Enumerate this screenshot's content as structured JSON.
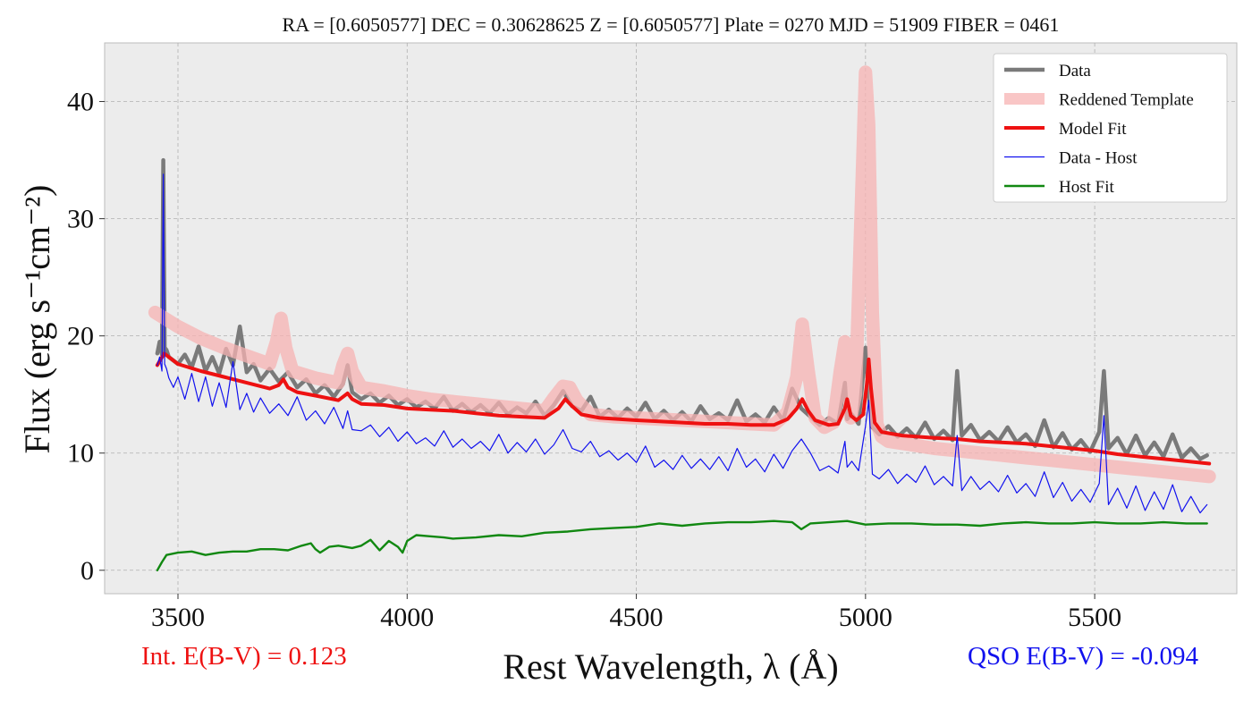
{
  "chart_data": {
    "type": "line",
    "title": "RA = [0.6050577]  DEC = 0.30628625  Z = [0.6050577] Plate = 0270 MJD = 51909 FIBER = 0461",
    "xlabel": "Rest Wavelength, λ (Å)",
    "ylabel": "Flux (erg s⁻¹cm⁻²)",
    "xlim": [
      3340,
      5810
    ],
    "ylim": [
      -2,
      45
    ],
    "xticks": [
      "3500",
      "4000",
      "4500",
      "5000",
      "5500"
    ],
    "yticks": [
      "0",
      "10",
      "20",
      "30",
      "40"
    ],
    "grid": true,
    "legend_position": "top-right",
    "background": "#ececec",
    "series": [
      {
        "name": "Data",
        "color": "#7a7a7a",
        "x": [
          3455,
          3460,
          3465,
          3468,
          3471,
          3475,
          3480,
          3490,
          3500,
          3515,
          3530,
          3545,
          3560,
          3575,
          3590,
          3605,
          3620,
          3635,
          3650,
          3665,
          3680,
          3700,
          3720,
          3740,
          3760,
          3780,
          3800,
          3820,
          3840,
          3860,
          3870,
          3880,
          3900,
          3920,
          3940,
          3960,
          3980,
          4000,
          4020,
          4040,
          4060,
          4080,
          4100,
          4120,
          4140,
          4160,
          4180,
          4200,
          4220,
          4240,
          4260,
          4280,
          4300,
          4320,
          4340,
          4360,
          4380,
          4400,
          4420,
          4440,
          4460,
          4480,
          4500,
          4520,
          4540,
          4560,
          4580,
          4600,
          4620,
          4640,
          4660,
          4680,
          4700,
          4720,
          4740,
          4760,
          4780,
          4800,
          4820,
          4840,
          4860,
          4880,
          4900,
          4920,
          4940,
          4955,
          4960,
          4970,
          4985,
          5000,
          5007,
          5015,
          5030,
          5050,
          5070,
          5090,
          5110,
          5130,
          5150,
          5170,
          5190,
          5200,
          5210,
          5230,
          5250,
          5270,
          5290,
          5310,
          5330,
          5350,
          5370,
          5390,
          5410,
          5430,
          5450,
          5470,
          5490,
          5510,
          5520,
          5530,
          5550,
          5570,
          5590,
          5610,
          5630,
          5650,
          5670,
          5690,
          5710,
          5730,
          5745
        ],
        "y": [
          18.5,
          19.5,
          18.4,
          35.0,
          19.0,
          18.8,
          18.2,
          17.9,
          17.6,
          18.4,
          17.3,
          19.1,
          17.0,
          18.2,
          16.8,
          18.9,
          17.5,
          20.8,
          16.9,
          17.6,
          16.2,
          17.2,
          16.1,
          16.9,
          15.6,
          16.3,
          15.1,
          15.8,
          14.8,
          15.9,
          17.5,
          15.2,
          14.6,
          15.1,
          14.3,
          14.9,
          14.1,
          14.6,
          13.9,
          14.4,
          13.8,
          14.8,
          13.6,
          14.2,
          13.5,
          14.1,
          13.4,
          14.3,
          13.3,
          13.9,
          13.4,
          14.4,
          13.2,
          14.1,
          15.3,
          14.0,
          13.6,
          14.8,
          13.1,
          13.7,
          13.0,
          13.8,
          13.1,
          14.3,
          12.9,
          13.6,
          12.8,
          13.5,
          12.7,
          14.0,
          12.9,
          13.4,
          12.8,
          14.5,
          12.7,
          13.3,
          12.6,
          13.9,
          12.8,
          15.5,
          13.8,
          13.1,
          12.4,
          13.0,
          12.5,
          16.0,
          12.9,
          13.3,
          12.5,
          19.0,
          15.0,
          12.2,
          11.6,
          12.3,
          11.4,
          12.1,
          11.3,
          12.6,
          11.2,
          11.9,
          11.1,
          17.0,
          11.5,
          12.4,
          11.1,
          11.8,
          11.0,
          12.2,
          10.9,
          11.6,
          10.6,
          12.8,
          10.5,
          11.7,
          10.3,
          11.1,
          10.1,
          11.8,
          17.0,
          10.4,
          11.3,
          9.9,
          11.5,
          9.8,
          10.9,
          9.7,
          11.6,
          9.6,
          10.4,
          9.5,
          9.8
        ]
      },
      {
        "name": "Reddened Template",
        "color": "#f7b3b3",
        "x": [
          3450,
          3500,
          3550,
          3600,
          3650,
          3700,
          3715,
          3725,
          3735,
          3750,
          3800,
          3850,
          3860,
          3870,
          3880,
          3900,
          3950,
          4000,
          4050,
          4100,
          4150,
          4200,
          4250,
          4300,
          4320,
          4340,
          4355,
          4370,
          4400,
          4450,
          4500,
          4550,
          4600,
          4650,
          4700,
          4750,
          4800,
          4830,
          4850,
          4862,
          4875,
          4890,
          4910,
          4930,
          4945,
          4955,
          4960,
          4968,
          4978,
          4990,
          5000,
          5007,
          5015,
          5025,
          5035,
          5050,
          5100,
          5150,
          5200,
          5250,
          5300,
          5350,
          5400,
          5450,
          5500,
          5550,
          5600,
          5650,
          5700,
          5750
        ],
        "y": [
          22.0,
          20.8,
          19.8,
          19.0,
          18.3,
          17.6,
          19.5,
          21.5,
          19.0,
          17.0,
          16.4,
          16.0,
          17.5,
          18.5,
          17.0,
          15.6,
          15.3,
          14.9,
          14.6,
          14.4,
          14.2,
          14.0,
          13.8,
          13.6,
          14.7,
          15.7,
          15.6,
          14.5,
          13.3,
          13.1,
          13.0,
          12.9,
          12.8,
          12.7,
          12.6,
          12.5,
          12.4,
          13.5,
          16.5,
          21.0,
          17.0,
          13.0,
          12.2,
          12.6,
          17.0,
          19.5,
          17.5,
          13.0,
          15.0,
          30.0,
          42.5,
          38.0,
          22.0,
          12.5,
          11.4,
          11.0,
          10.7,
          10.4,
          10.2,
          10.0,
          9.8,
          9.6,
          9.4,
          9.2,
          9.0,
          8.8,
          8.6,
          8.4,
          8.2,
          8.0
        ]
      },
      {
        "name": "Model Fit",
        "color": "#ee1111",
        "x": [
          3455,
          3470,
          3500,
          3550,
          3600,
          3650,
          3700,
          3720,
          3730,
          3740,
          3760,
          3800,
          3850,
          3870,
          3880,
          3900,
          3950,
          4000,
          4050,
          4100,
          4150,
          4200,
          4250,
          4300,
          4330,
          4345,
          4360,
          4380,
          4420,
          4500,
          4550,
          4600,
          4650,
          4700,
          4750,
          4800,
          4830,
          4850,
          4862,
          4875,
          4890,
          4920,
          4940,
          4955,
          4960,
          4968,
          4980,
          4995,
          5003,
          5007,
          5012,
          5020,
          5035,
          5080,
          5150,
          5200,
          5250,
          5300,
          5350,
          5400,
          5450,
          5500,
          5550,
          5600,
          5650,
          5700,
          5750
        ],
        "y": [
          17.5,
          18.5,
          17.6,
          17.0,
          16.5,
          16.0,
          15.5,
          15.8,
          16.3,
          15.6,
          15.2,
          14.9,
          14.5,
          15.1,
          14.6,
          14.2,
          14.1,
          13.8,
          13.7,
          13.6,
          13.4,
          13.2,
          13.1,
          13.0,
          13.8,
          14.6,
          14.0,
          13.3,
          13.0,
          12.8,
          12.7,
          12.6,
          12.5,
          12.5,
          12.4,
          12.4,
          12.9,
          13.8,
          14.6,
          13.6,
          12.8,
          12.4,
          12.5,
          13.8,
          14.6,
          13.2,
          12.8,
          13.3,
          16.0,
          18.0,
          15.5,
          12.6,
          11.8,
          11.5,
          11.3,
          11.2,
          11.0,
          10.9,
          10.8,
          10.6,
          10.4,
          10.2,
          9.9,
          9.7,
          9.5,
          9.3,
          9.1
        ]
      },
      {
        "name": "Data - Host",
        "color": "#1111ee",
        "x": [
          3455,
          3460,
          3465,
          3468,
          3471,
          3475,
          3480,
          3490,
          3500,
          3515,
          3530,
          3545,
          3560,
          3575,
          3590,
          3605,
          3620,
          3635,
          3650,
          3665,
          3680,
          3700,
          3720,
          3740,
          3760,
          3780,
          3800,
          3820,
          3840,
          3860,
          3870,
          3880,
          3900,
          3920,
          3940,
          3960,
          3980,
          4000,
          4020,
          4040,
          4060,
          4080,
          4100,
          4120,
          4140,
          4160,
          4180,
          4200,
          4220,
          4240,
          4260,
          4280,
          4300,
          4320,
          4340,
          4360,
          4380,
          4400,
          4420,
          4440,
          4460,
          4480,
          4500,
          4520,
          4540,
          4560,
          4580,
          4600,
          4620,
          4640,
          4660,
          4680,
          4700,
          4720,
          4740,
          4760,
          4780,
          4800,
          4820,
          4840,
          4860,
          4880,
          4900,
          4920,
          4940,
          4955,
          4960,
          4970,
          4985,
          5000,
          5007,
          5015,
          5030,
          5050,
          5070,
          5090,
          5110,
          5130,
          5150,
          5170,
          5190,
          5200,
          5210,
          5230,
          5250,
          5270,
          5290,
          5310,
          5330,
          5350,
          5370,
          5390,
          5410,
          5430,
          5450,
          5470,
          5490,
          5510,
          5520,
          5530,
          5550,
          5570,
          5590,
          5610,
          5630,
          5650,
          5670,
          5690,
          5710,
          5730,
          5745
        ],
        "y": [
          17.5,
          18.2,
          17.0,
          33.8,
          17.6,
          17.2,
          16.4,
          15.6,
          16.5,
          14.6,
          16.8,
          14.4,
          16.5,
          14.0,
          16.0,
          13.9,
          17.8,
          13.7,
          15.1,
          13.5,
          14.7,
          13.4,
          14.2,
          13.2,
          14.8,
          12.8,
          13.6,
          12.5,
          13.9,
          12.1,
          13.6,
          12.0,
          11.9,
          12.4,
          11.4,
          12.2,
          11.0,
          11.8,
          10.8,
          11.3,
          10.6,
          11.9,
          10.5,
          11.2,
          10.4,
          11.0,
          10.2,
          11.6,
          10.0,
          10.9,
          10.1,
          11.2,
          9.9,
          10.7,
          12.0,
          10.4,
          10.1,
          11.0,
          9.7,
          10.2,
          9.4,
          10.0,
          9.2,
          10.6,
          8.8,
          9.4,
          8.6,
          9.8,
          8.7,
          9.5,
          8.6,
          9.7,
          8.5,
          10.4,
          8.8,
          9.5,
          8.4,
          9.9,
          8.7,
          10.2,
          11.2,
          10.0,
          8.5,
          8.9,
          8.3,
          11.0,
          8.8,
          9.3,
          8.5,
          12.3,
          14.5,
          8.2,
          7.8,
          8.6,
          7.4,
          8.2,
          7.5,
          8.9,
          7.3,
          8.0,
          7.2,
          11.5,
          6.8,
          8.0,
          6.9,
          7.6,
          6.7,
          8.1,
          6.6,
          7.4,
          6.3,
          8.4,
          6.2,
          7.5,
          5.9,
          6.9,
          5.8,
          7.4,
          13.2,
          5.6,
          7.0,
          5.3,
          7.2,
          5.1,
          6.7,
          5.2,
          7.3,
          5.0,
          6.3,
          4.9,
          5.6
        ]
      },
      {
        "name": "Host Fit",
        "color": "#118811",
        "x": [
          3455,
          3465,
          3475,
          3500,
          3530,
          3560,
          3590,
          3620,
          3650,
          3680,
          3710,
          3740,
          3770,
          3790,
          3800,
          3810,
          3830,
          3850,
          3880,
          3900,
          3920,
          3940,
          3960,
          3980,
          3990,
          4000,
          4020,
          4050,
          4080,
          4100,
          4150,
          4200,
          4250,
          4300,
          4350,
          4400,
          4450,
          4500,
          4550,
          4600,
          4650,
          4700,
          4750,
          4800,
          4840,
          4860,
          4880,
          4920,
          4960,
          5000,
          5050,
          5100,
          5150,
          5200,
          5250,
          5300,
          5350,
          5400,
          5450,
          5500,
          5550,
          5600,
          5650,
          5700,
          5745
        ],
        "y": [
          0.0,
          0.7,
          1.3,
          1.5,
          1.6,
          1.3,
          1.5,
          1.6,
          1.6,
          1.8,
          1.8,
          1.7,
          2.1,
          2.3,
          1.8,
          1.5,
          2.0,
          2.1,
          1.9,
          2.1,
          2.6,
          1.7,
          2.5,
          2.0,
          1.5,
          2.5,
          3.0,
          2.9,
          2.8,
          2.7,
          2.8,
          3.0,
          2.9,
          3.2,
          3.3,
          3.5,
          3.6,
          3.7,
          4.0,
          3.8,
          4.0,
          4.1,
          4.1,
          4.2,
          4.1,
          3.5,
          4.0,
          4.1,
          4.2,
          3.9,
          4.0,
          4.0,
          3.9,
          3.9,
          3.8,
          4.0,
          4.1,
          4.0,
          4.0,
          4.1,
          4.0,
          4.0,
          4.1,
          4.0,
          4.0
        ]
      }
    ],
    "annotations": {
      "int_ebv": {
        "text": "Int. E(B-V) = 0.123",
        "color": "#ee1111"
      },
      "qso_ebv": {
        "text": "QSO E(B-V) = -0.094",
        "color": "#1111ee"
      }
    }
  }
}
